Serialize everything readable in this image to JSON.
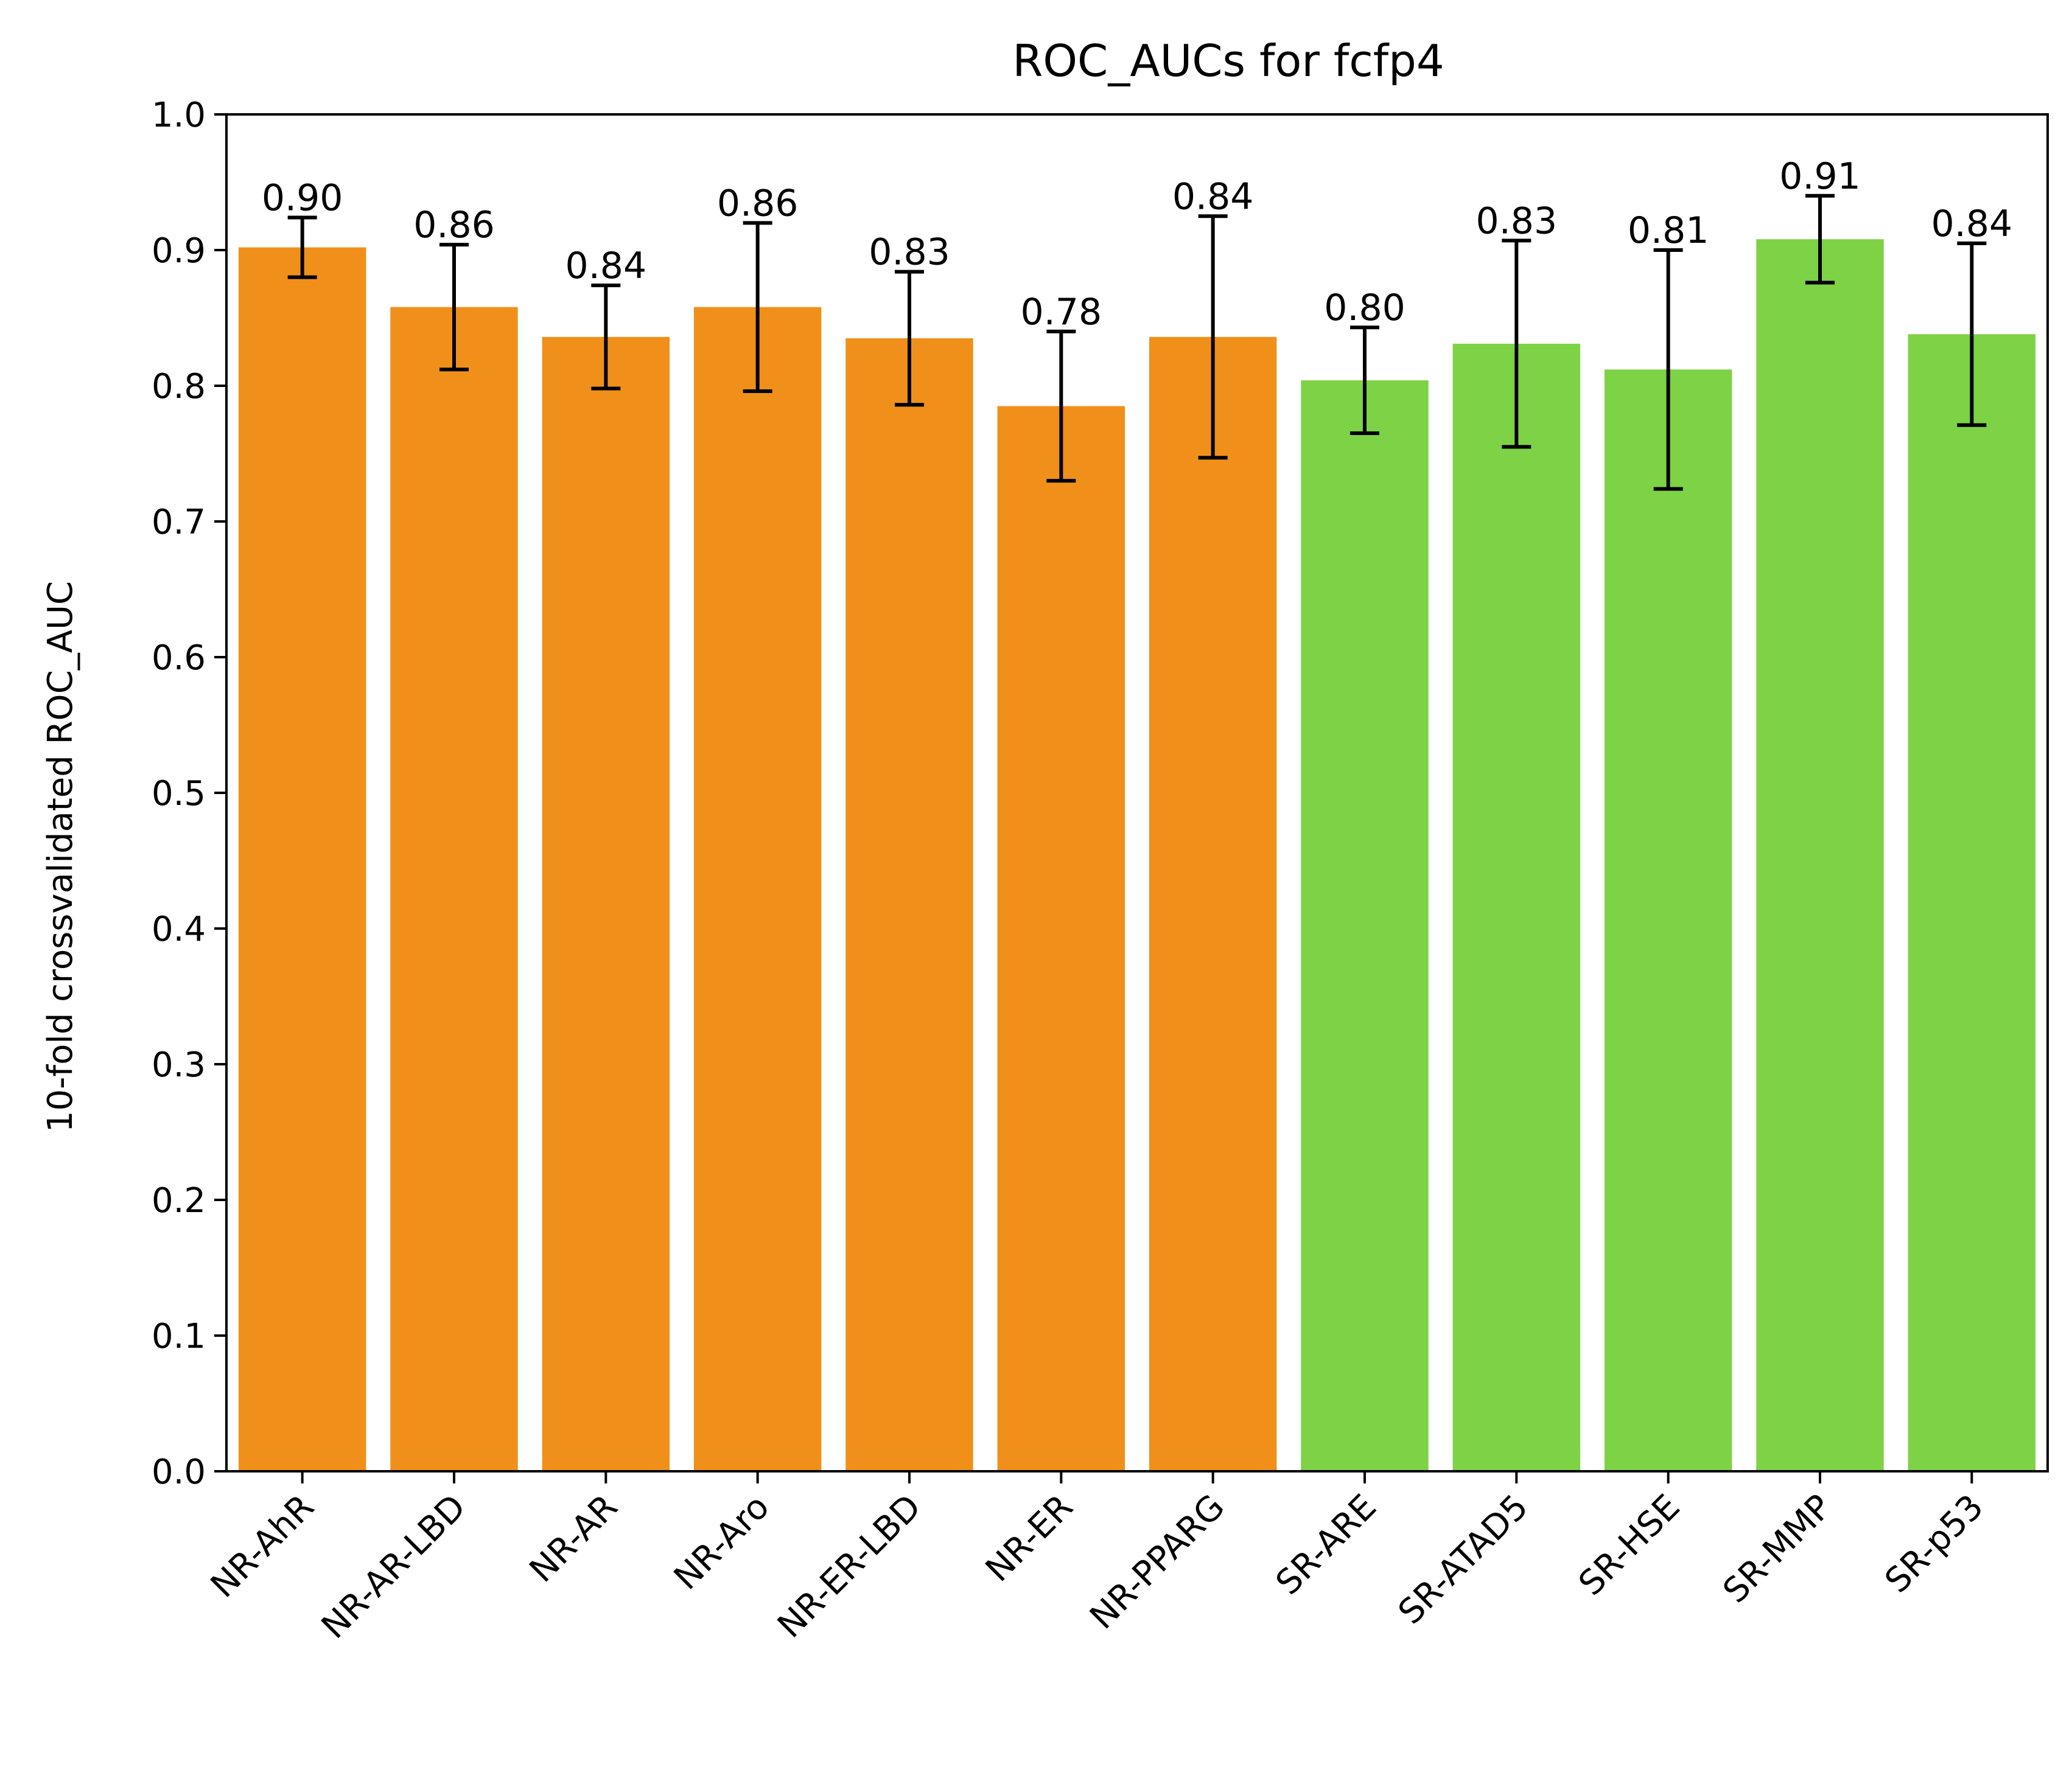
{
  "chart_data": {
    "type": "bar",
    "title": "ROC_AUCs for fcfp4",
    "xlabel": "",
    "ylabel": "10-fold crossvalidated ROC_AUC",
    "ylim": [
      0.0,
      1.0
    ],
    "yticks": [
      "0.0",
      "0.1",
      "0.2",
      "0.3",
      "0.4",
      "0.5",
      "0.6",
      "0.7",
      "0.8",
      "0.9",
      "1.0"
    ],
    "grid": false,
    "legend": "none",
    "categories": [
      "NR-AhR",
      "NR-AR-LBD",
      "NR-AR",
      "NR-Aro",
      "NR-ER-LBD",
      "NR-ER",
      "NR-PPARG",
      "SR-ARE",
      "SR-ATAD5",
      "SR-HSE",
      "SR-MMP",
      "SR-p53"
    ],
    "values": [
      0.902,
      0.858,
      0.836,
      0.858,
      0.835,
      0.785,
      0.836,
      0.804,
      0.831,
      0.812,
      0.908,
      0.838
    ],
    "error": [
      0.022,
      0.046,
      0.038,
      0.062,
      0.049,
      0.055,
      0.089,
      0.039,
      0.076,
      0.088,
      0.032,
      0.067
    ],
    "data_labels": [
      "0.90",
      "0.86",
      "0.84",
      "0.86",
      "0.83",
      "0.78",
      "0.84",
      "0.80",
      "0.83",
      "0.81",
      "0.91",
      "0.84"
    ],
    "bar_colors": [
      "#F0901A",
      "#F0901A",
      "#F0901A",
      "#F0901A",
      "#F0901A",
      "#F0901A",
      "#F0901A",
      "#7ED245",
      "#7ED245",
      "#7ED245",
      "#7ED245",
      "#7ED245"
    ]
  }
}
